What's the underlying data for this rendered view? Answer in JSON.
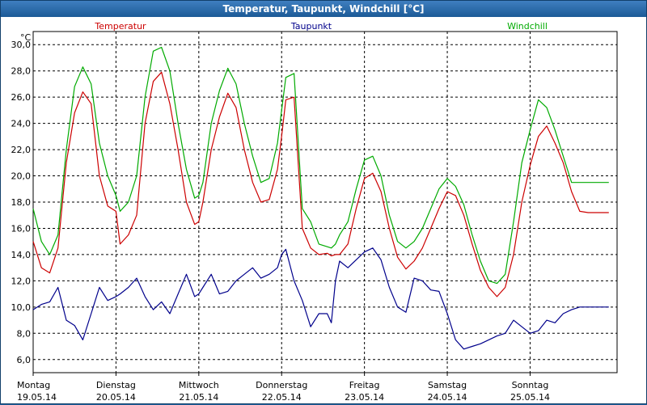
{
  "window": {
    "title": "Temperatur, Taupunkt, Windchill [°C]"
  },
  "chart_data": {
    "type": "line",
    "title": "Temperatur, Taupunkt, Windchill [°C]",
    "ylabel": "°C",
    "ylim": [
      5.0,
      31.0
    ],
    "xlim": [
      0,
      7.05
    ],
    "grid": true,
    "yticks": [
      "30,0",
      "28,0",
      "26,0",
      "24,0",
      "22,0",
      "20,0",
      "18,0",
      "16,0",
      "14,0",
      "12,0",
      "10,0",
      "8,0",
      "6,0"
    ],
    "ytick_values": [
      30,
      28,
      26,
      24,
      22,
      20,
      18,
      16,
      14,
      12,
      10,
      8,
      6
    ],
    "days": [
      {
        "day": "Montag",
        "date": "19.05.14"
      },
      {
        "day": "Dienstag",
        "date": "20.05.14"
      },
      {
        "day": "Mittwoch",
        "date": "21.05.14"
      },
      {
        "day": "Donnerstag",
        "date": "22.05.14"
      },
      {
        "day": "Freitag",
        "date": "23.05.14"
      },
      {
        "day": "Samstag",
        "date": "24.05.14"
      },
      {
        "day": "Sonntag",
        "date": "25.05.14"
      }
    ],
    "legend_position": "top",
    "series": [
      {
        "name": "Temperatur",
        "color": "#cc0000",
        "x": [
          0,
          0.1,
          0.2,
          0.3,
          0.4,
          0.5,
          0.6,
          0.7,
          0.8,
          0.9,
          1.0,
          1.05,
          1.15,
          1.25,
          1.35,
          1.45,
          1.55,
          1.65,
          1.75,
          1.85,
          1.95,
          2.0,
          2.05,
          2.15,
          2.25,
          2.35,
          2.45,
          2.55,
          2.65,
          2.75,
          2.85,
          2.95,
          3.0,
          3.05,
          3.15,
          3.25,
          3.35,
          3.45,
          3.55,
          3.6,
          3.65,
          3.7,
          3.8,
          3.9,
          4.0,
          4.1,
          4.2,
          4.3,
          4.4,
          4.5,
          4.6,
          4.7,
          4.8,
          4.9,
          5.0,
          5.1,
          5.2,
          5.3,
          5.4,
          5.5,
          5.6,
          5.7,
          5.8,
          5.9,
          6.0,
          6.1,
          6.2,
          6.3,
          6.4,
          6.5,
          6.6,
          6.7,
          6.8,
          6.9,
          6.95
        ],
        "y": [
          15.0,
          13.0,
          12.6,
          14.5,
          21.0,
          24.8,
          26.4,
          25.5,
          20.0,
          17.7,
          17.3,
          14.8,
          15.5,
          17.0,
          24.0,
          27.2,
          27.9,
          25.5,
          22.0,
          18.0,
          16.3,
          16.5,
          18.0,
          22.0,
          24.5,
          26.3,
          25.2,
          22.0,
          19.5,
          18.0,
          18.2,
          20.5,
          23.0,
          25.8,
          26.0,
          16.0,
          14.5,
          14.0,
          14.1,
          13.9,
          14.0,
          14.0,
          14.8,
          17.5,
          19.8,
          20.2,
          18.8,
          16.0,
          13.8,
          12.9,
          13.5,
          14.5,
          16.0,
          17.5,
          18.8,
          18.5,
          17.0,
          14.8,
          12.8,
          11.5,
          10.8,
          11.5,
          14.0,
          18.0,
          20.8,
          23.0,
          23.8,
          22.5,
          21.0,
          18.8,
          17.3,
          17.2,
          17.2,
          17.2,
          17.2
        ]
      },
      {
        "name": "Taupunkt",
        "color": "#00008b",
        "x": [
          0,
          0.1,
          0.2,
          0.3,
          0.4,
          0.5,
          0.6,
          0.7,
          0.8,
          0.9,
          1.0,
          1.05,
          1.15,
          1.25,
          1.35,
          1.45,
          1.55,
          1.65,
          1.75,
          1.85,
          1.95,
          2.0,
          2.05,
          2.15,
          2.25,
          2.35,
          2.45,
          2.55,
          2.65,
          2.75,
          2.85,
          2.95,
          3.0,
          3.05,
          3.15,
          3.25,
          3.35,
          3.45,
          3.55,
          3.6,
          3.65,
          3.7,
          3.8,
          3.9,
          4.0,
          4.1,
          4.2,
          4.3,
          4.4,
          4.5,
          4.6,
          4.7,
          4.8,
          4.9,
          5.0,
          5.1,
          5.2,
          5.3,
          5.4,
          5.5,
          5.6,
          5.7,
          5.8,
          5.9,
          6.0,
          6.1,
          6.2,
          6.3,
          6.4,
          6.5,
          6.6,
          6.7,
          6.8,
          6.9,
          6.95
        ],
        "y": [
          9.8,
          10.2,
          10.4,
          11.5,
          9.0,
          8.6,
          7.5,
          9.5,
          11.5,
          10.5,
          10.8,
          11.0,
          11.5,
          12.2,
          10.8,
          9.8,
          10.4,
          9.5,
          11.0,
          12.5,
          10.8,
          11.0,
          11.5,
          12.5,
          11.0,
          11.2,
          12.0,
          12.5,
          13.0,
          12.2,
          12.5,
          13.0,
          14.0,
          14.4,
          12.0,
          10.5,
          8.5,
          9.5,
          9.5,
          8.8,
          12.0,
          13.5,
          13.0,
          13.6,
          14.2,
          14.5,
          13.6,
          11.5,
          10.0,
          9.6,
          12.2,
          12.0,
          11.3,
          11.2,
          9.5,
          7.5,
          6.8,
          7.0,
          7.2,
          7.5,
          7.8,
          8.0,
          9.0,
          8.5,
          8.0,
          8.2,
          9.0,
          8.8,
          9.5,
          9.8,
          10.0,
          10.0,
          10.0,
          10.0,
          10.0
        ]
      },
      {
        "name": "Windchill",
        "color": "#00aa00",
        "x": [
          0,
          0.1,
          0.2,
          0.3,
          0.4,
          0.5,
          0.6,
          0.7,
          0.8,
          0.9,
          1.0,
          1.05,
          1.15,
          1.25,
          1.35,
          1.45,
          1.55,
          1.65,
          1.75,
          1.85,
          1.95,
          2.0,
          2.05,
          2.15,
          2.25,
          2.35,
          2.45,
          2.55,
          2.65,
          2.75,
          2.85,
          2.95,
          3.0,
          3.05,
          3.15,
          3.25,
          3.35,
          3.45,
          3.55,
          3.6,
          3.65,
          3.7,
          3.8,
          3.9,
          4.0,
          4.1,
          4.2,
          4.3,
          4.4,
          4.5,
          4.6,
          4.7,
          4.8,
          4.9,
          5.0,
          5.1,
          5.2,
          5.3,
          5.4,
          5.5,
          5.6,
          5.7,
          5.8,
          5.9,
          6.0,
          6.1,
          6.2,
          6.3,
          6.4,
          6.5,
          6.6,
          6.7,
          6.8,
          6.9,
          6.95
        ],
        "y": [
          17.5,
          15.0,
          14.0,
          15.5,
          22.0,
          26.8,
          28.3,
          27.0,
          22.5,
          20.0,
          18.5,
          17.3,
          18.0,
          20.0,
          26.0,
          29.5,
          29.8,
          28.0,
          24.0,
          20.5,
          18.3,
          18.5,
          19.5,
          24.0,
          26.5,
          28.2,
          27.0,
          24.0,
          21.5,
          19.5,
          19.8,
          22.5,
          25.0,
          27.5,
          27.8,
          17.5,
          16.5,
          14.8,
          14.6,
          14.5,
          14.8,
          15.5,
          16.5,
          19.0,
          21.2,
          21.5,
          20.0,
          17.0,
          15.0,
          14.5,
          15.0,
          16.0,
          17.5,
          19.0,
          19.8,
          19.2,
          17.8,
          15.5,
          13.5,
          12.0,
          11.8,
          12.5,
          16.5,
          21.0,
          23.5,
          25.8,
          25.2,
          23.5,
          21.5,
          19.5,
          19.5,
          19.5,
          19.5,
          19.5,
          19.5
        ]
      }
    ]
  }
}
